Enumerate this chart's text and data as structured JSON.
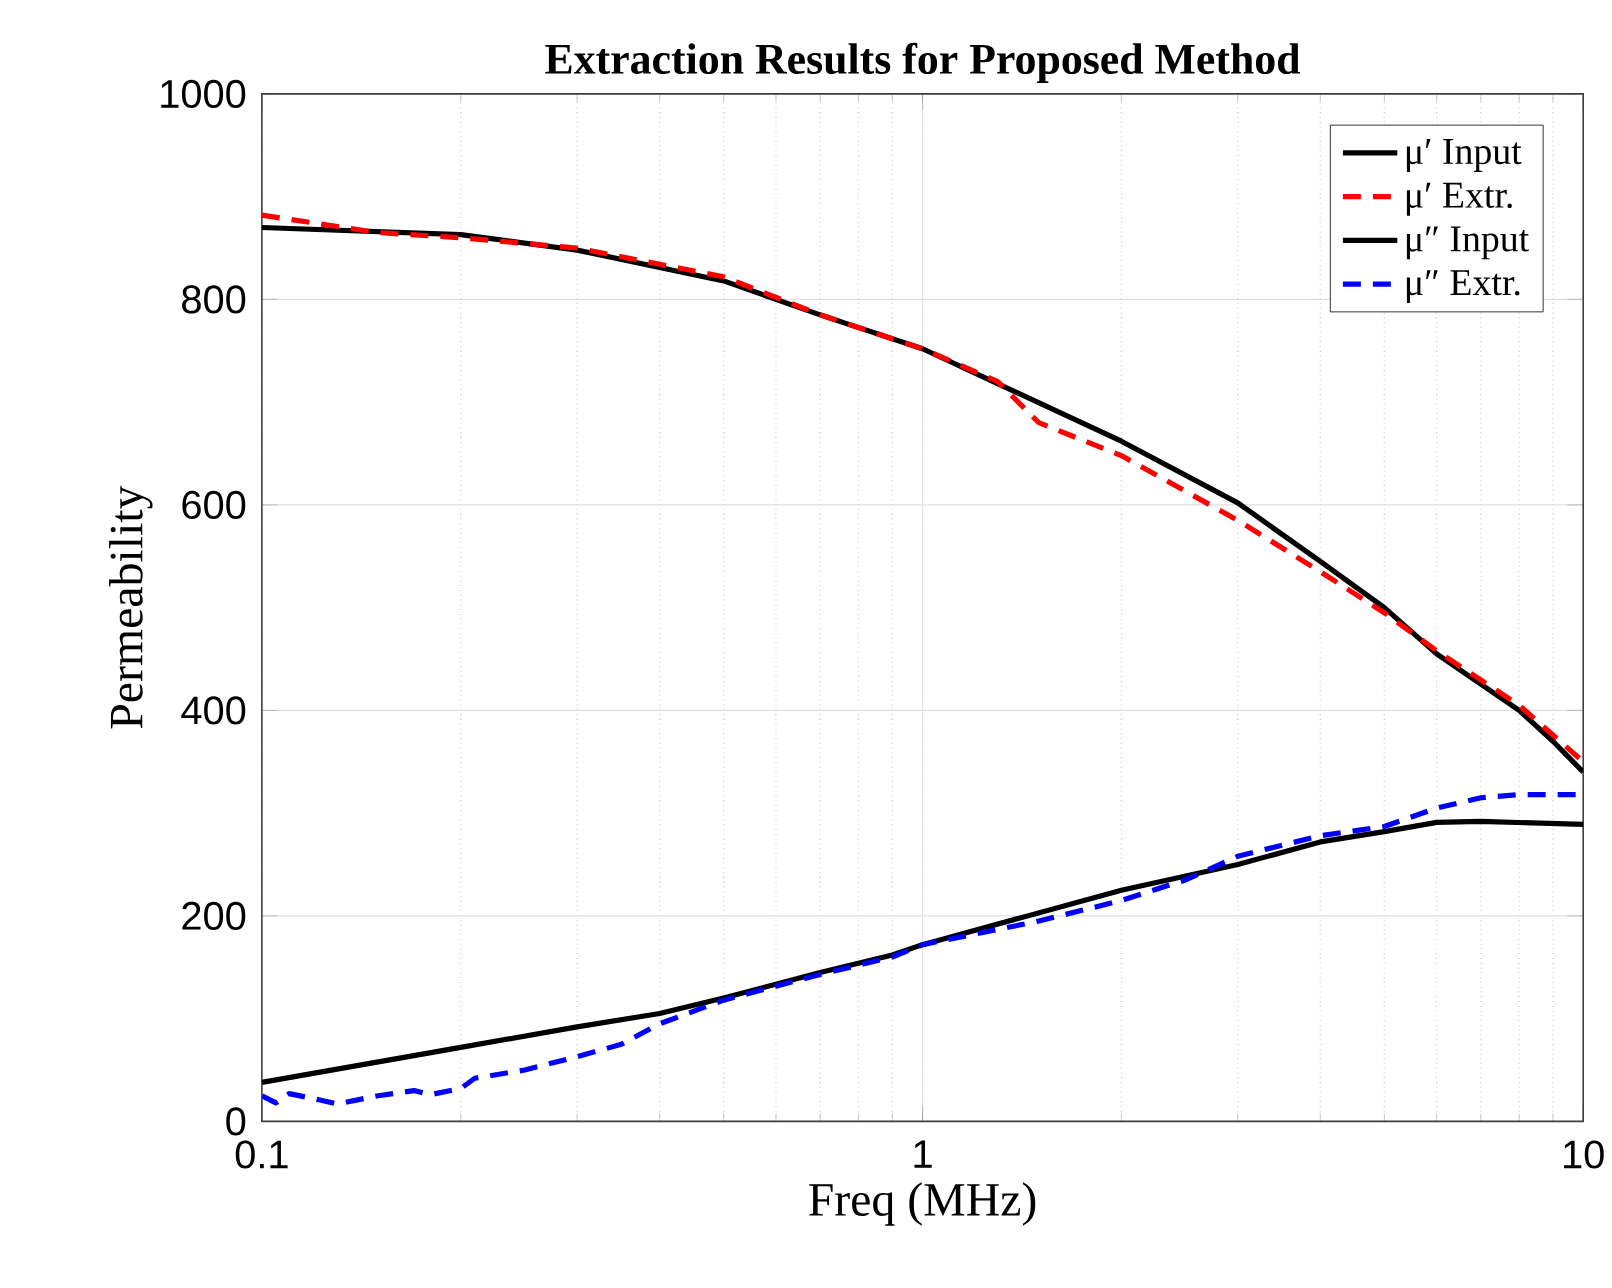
{
  "chart_data": {
    "type": "line",
    "title": "Extraction Results for Proposed Method",
    "xlabel": "Freq (MHz)",
    "ylabel": "Permeability",
    "log": "x",
    "xlim": [
      0.1,
      10
    ],
    "xticks": [
      0.1,
      1,
      10
    ],
    "ylim": [
      0,
      1000
    ],
    "yticks": [
      0,
      200,
      400,
      600,
      800,
      1000
    ],
    "grid": true,
    "legend": "top right",
    "marker": "none",
    "series": [
      {
        "name": "μ′ Input",
        "color": "#000000",
        "line_style": "solid",
        "x": [
          0.1,
          0.2,
          0.3,
          0.5,
          0.7,
          1,
          2,
          3,
          4,
          5,
          6,
          8,
          9,
          10
        ],
        "values": [
          870,
          863,
          848,
          818,
          785,
          752,
          662,
          602,
          545,
          500,
          455,
          400,
          370,
          340
        ]
      },
      {
        "name": "μ′ Extr.",
        "color": "#ff0000",
        "line_style": "dashed",
        "x": [
          0.1,
          0.15,
          0.2,
          0.3,
          0.5,
          0.7,
          1,
          1.3,
          1.5,
          2,
          3,
          4,
          5,
          6,
          8,
          10
        ],
        "values": [
          882,
          865,
          860,
          850,
          822,
          785,
          752,
          720,
          680,
          648,
          585,
          535,
          495,
          458,
          405,
          350
        ]
      },
      {
        "name": "μ″ Input",
        "color": "#000000",
        "line_style": "solid",
        "x": [
          0.1,
          0.2,
          0.3,
          0.4,
          0.5,
          0.7,
          0.9,
          1,
          2,
          3,
          4,
          5,
          6,
          7,
          10
        ],
        "values": [
          38,
          72,
          92,
          105,
          120,
          145,
          162,
          172,
          225,
          250,
          272,
          282,
          291,
          292,
          289
        ]
      },
      {
        "name": "μ″ Extr.",
        "color": "#0000ff",
        "line_style": "dashed",
        "x": [
          0.1,
          0.105,
          0.11,
          0.12,
          0.13,
          0.15,
          0.17,
          0.18,
          0.2,
          0.21,
          0.25,
          0.3,
          0.35,
          0.4,
          0.5,
          0.7,
          0.9,
          1,
          1.5,
          2,
          2.5,
          3,
          4,
          5,
          6,
          7,
          8,
          10
        ],
        "values": [
          25,
          18,
          27,
          22,
          17,
          25,
          30,
          26,
          32,
          42,
          50,
          63,
          75,
          95,
          118,
          143,
          160,
          172,
          195,
          215,
          235,
          258,
          278,
          287,
          305,
          315,
          318,
          318
        ]
      }
    ]
  }
}
